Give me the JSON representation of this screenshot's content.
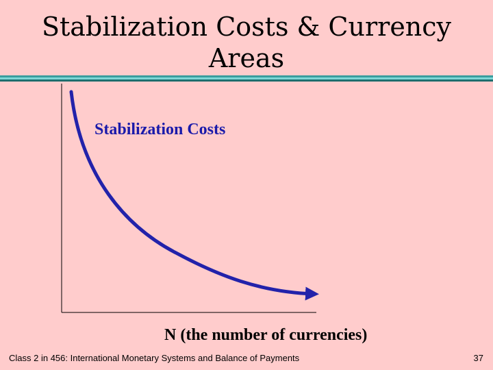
{
  "slide": {
    "title_lines": [
      "Stabilization Costs & Currency",
      "Areas"
    ]
  },
  "diagram": {
    "curve_label": "Stabilization Costs",
    "x_axis_label": "N  (the number of currencies)",
    "curve_color": "#2222AA",
    "label_color": "#1A1AAA"
  },
  "footer": {
    "text": "Class 2 in 456: International Monetary Systems and Balance of Payments",
    "page_number": "37"
  },
  "theme": {
    "background": "#FFCCCC",
    "rule_colors": [
      "#3A9E9E",
      "#7FD6D6",
      "#1E6E6E"
    ]
  }
}
